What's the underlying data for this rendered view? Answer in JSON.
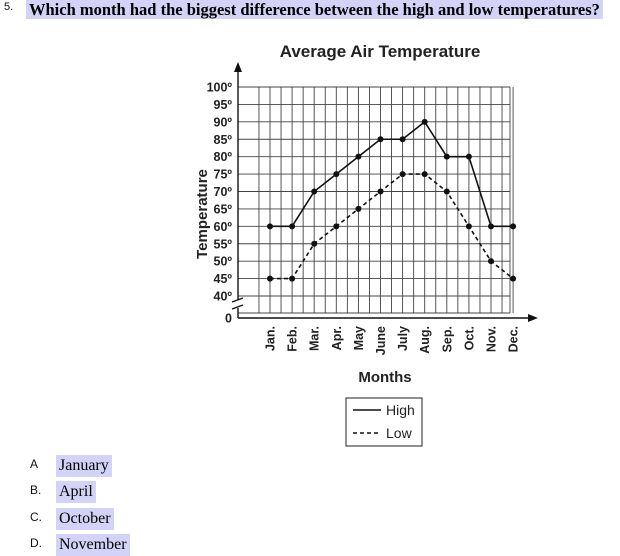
{
  "question": {
    "number": "5.",
    "text": "Which month had the biggest difference between the high and low temperatures?"
  },
  "chart_data": {
    "type": "line",
    "title": "Average Air Temperature",
    "xlabel": "Months",
    "ylabel": "Temperature",
    "categories": [
      "Jan.",
      "Feb.",
      "Mar.",
      "Apr.",
      "May",
      "June",
      "July",
      "Aug.",
      "Sep.",
      "Oct.",
      "Nov.",
      "Dec."
    ],
    "y_ticks": [
      "100º",
      "95º",
      "90º",
      "85º",
      "80º",
      "75º",
      "70º",
      "65º",
      "60º",
      "55º",
      "50º",
      "45º",
      "40º",
      "0"
    ],
    "ylim": [
      40,
      100
    ],
    "axis_break": true,
    "grid": true,
    "legend_placement": "bottom",
    "series": [
      {
        "name": "High",
        "style": "solid",
        "values": [
          60,
          60,
          70,
          75,
          80,
          85,
          85,
          90,
          80,
          80,
          60,
          60
        ]
      },
      {
        "name": "Low",
        "style": "dashed",
        "values": [
          45,
          45,
          55,
          60,
          65,
          70,
          75,
          75,
          70,
          60,
          50,
          45
        ]
      }
    ]
  },
  "answers": [
    {
      "letter": "A",
      "text": "January"
    },
    {
      "letter": "B.",
      "text": "April"
    },
    {
      "letter": "C.",
      "text": "October"
    },
    {
      "letter": "D.",
      "text": "November"
    }
  ],
  "colors": {
    "highlight": "#d3d3f7",
    "ink": "#000000"
  }
}
